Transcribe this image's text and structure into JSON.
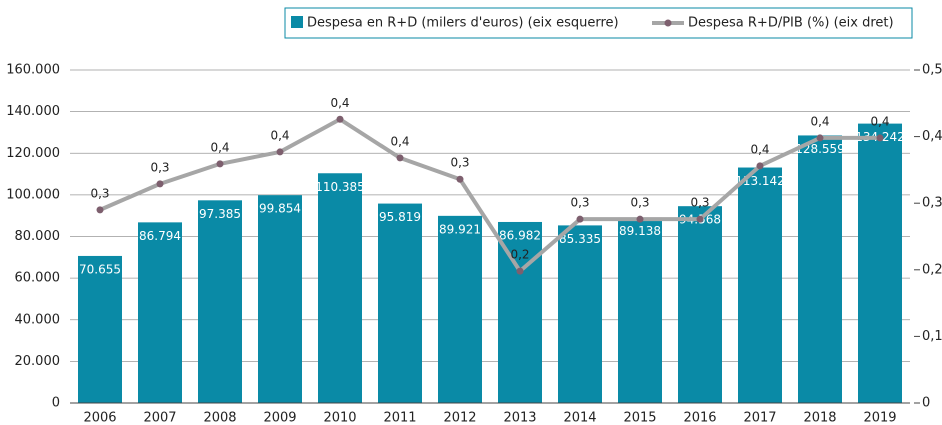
{
  "chart_data": {
    "type": "bar",
    "categories": [
      "2006",
      "2007",
      "2008",
      "2009",
      "2010",
      "2011",
      "2012",
      "2013",
      "2014",
      "2015",
      "2016",
      "2017",
      "2018",
      "2019"
    ],
    "series": [
      {
        "name": "Despesa en R+D (milers d'euros) (eix esquerre)",
        "type": "bar",
        "color": "#0a8aa6",
        "values": [
          70655,
          86794,
          97385,
          99854,
          110385,
          95819,
          89921,
          86982,
          85335,
          89138,
          94568,
          113142,
          128559,
          134242
        ],
        "value_labels": [
          "70.655",
          "86.794",
          "97.385",
          "99.854",
          "110.385",
          "95.819",
          "89.921",
          "86.982",
          "85.335",
          "89.138",
          "94.568",
          "113.142",
          "128.559",
          "134.242"
        ]
      },
      {
        "name": "Despesa R+D/PIB (%) (eix dret)",
        "type": "line",
        "axis": "y2",
        "color": "#a6a6a6",
        "marker_color": "#7d5f6e",
        "values": [
          0.29,
          0.329,
          0.359,
          0.377,
          0.426,
          0.368,
          0.336,
          0.198,
          0.276,
          0.276,
          0.276,
          0.356,
          0.398,
          0.398
        ],
        "value_labels": [
          "0,3",
          "0,3",
          "0,4",
          "0,4",
          "0,4",
          "0,4",
          "0,3",
          "0,2",
          "0,3",
          "0,3",
          "0,3",
          "0,4",
          "0,4",
          "0,4"
        ]
      }
    ],
    "ylim": [
      0,
      160000
    ],
    "yticks": [
      0,
      {
        "value": 20000,
        "label": "20.000"
      },
      {
        "value": 40000,
        "label": "40.000"
      },
      {
        "value": 60000,
        "label": "60.000"
      },
      {
        "value": 80000,
        "label": "80.000"
      },
      {
        "value": 100000,
        "label": "100.000"
      },
      {
        "value": 120000,
        "label": "120.000"
      },
      {
        "value": 140000,
        "label": "140.000"
      },
      {
        "value": 160000,
        "label": "160.000"
      }
    ],
    "y2lim": [
      0,
      0.5
    ],
    "y2ticks": [
      0,
      {
        "value": 0.1,
        "label": "0,1"
      },
      {
        "value": 0.2,
        "label": "0,2"
      },
      {
        "value": 0.3,
        "label": "0,3"
      },
      {
        "value": 0.4,
        "label": "0,4"
      },
      {
        "value": 0.5,
        "label": "0,5"
      }
    ],
    "grid": true,
    "legend": "top-right"
  }
}
